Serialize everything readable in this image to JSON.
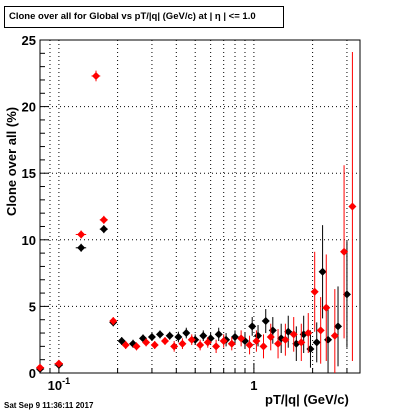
{
  "chart_data": {
    "type": "scatter",
    "title": "Clone   over all for Global vs pT/|q| (GeV/c) at |   η | <= 1.0",
    "xlabel": "pT/|q| (GeV/c)",
    "ylabel": "Clone  over all (%)",
    "xscale": "log",
    "xlim": [
      0.08,
      3.5
    ],
    "ylim": [
      0,
      25
    ],
    "yticks": [
      0,
      5,
      10,
      15,
      20,
      25
    ],
    "xticks_labeled": [
      {
        "value": 0.1,
        "label": "10",
        "exp": "-1"
      },
      {
        "value": 1,
        "label": "1",
        "exp": ""
      }
    ],
    "grid": true,
    "legend": "none",
    "colors": {
      "series_black": "#000000",
      "series_red": "#ff0000"
    },
    "series": [
      {
        "color": "#000000",
        "points": [
          {
            "x": 0.08,
            "y": 0.3,
            "ex": 0.004,
            "ey": 0.2
          },
          {
            "x": 0.1,
            "y": 0.6,
            "ex": 0.005,
            "ey": 0.2
          },
          {
            "x": 0.13,
            "y": 9.4,
            "ex": 0.008,
            "ey": 0.3
          },
          {
            "x": 0.17,
            "y": 10.8,
            "ex": 0.008,
            "ey": 0.3
          },
          {
            "x": 0.19,
            "y": 3.8,
            "ex": 0.006,
            "ey": 0.3
          },
          {
            "x": 0.21,
            "y": 2.4,
            "ex": 0.006,
            "ey": 0.3
          },
          {
            "x": 0.24,
            "y": 2.2,
            "ex": 0.006,
            "ey": 0.3
          },
          {
            "x": 0.27,
            "y": 2.6,
            "ex": 0.006,
            "ey": 0.3
          },
          {
            "x": 0.3,
            "y": 2.7,
            "ex": 0.006,
            "ey": 0.3
          },
          {
            "x": 0.33,
            "y": 2.9,
            "ex": 0.006,
            "ey": 0.3
          },
          {
            "x": 0.37,
            "y": 2.8,
            "ex": 0.006,
            "ey": 0.3
          },
          {
            "x": 0.41,
            "y": 2.7,
            "ex": 0.006,
            "ey": 0.4
          },
          {
            "x": 0.45,
            "y": 3.0,
            "ex": 0.006,
            "ey": 0.4
          },
          {
            "x": 0.5,
            "y": 2.5,
            "ex": 0.006,
            "ey": 0.4
          },
          {
            "x": 0.55,
            "y": 2.8,
            "ex": 0.006,
            "ey": 0.4
          },
          {
            "x": 0.6,
            "y": 2.6,
            "ex": 0.006,
            "ey": 0.4
          },
          {
            "x": 0.66,
            "y": 2.9,
            "ex": 0.006,
            "ey": 0.5
          },
          {
            "x": 0.72,
            "y": 2.5,
            "ex": 0.006,
            "ey": 0.5
          },
          {
            "x": 0.8,
            "y": 2.7,
            "ex": 0.006,
            "ey": 0.5
          },
          {
            "x": 0.9,
            "y": 2.4,
            "ex": 0.006,
            "ey": 0.6
          },
          {
            "x": 0.98,
            "y": 3.5,
            "ex": 0.006,
            "ey": 0.7
          },
          {
            "x": 1.05,
            "y": 2.8,
            "ex": 0.006,
            "ey": 0.8
          },
          {
            "x": 1.15,
            "y": 3.9,
            "ex": 0.006,
            "ey": 0.9
          },
          {
            "x": 1.25,
            "y": 3.2,
            "ex": 0.006,
            "ey": 1.0
          },
          {
            "x": 1.38,
            "y": 2.6,
            "ex": 0.006,
            "ey": 1.1
          },
          {
            "x": 1.5,
            "y": 3.1,
            "ex": 0.006,
            "ey": 1.2
          },
          {
            "x": 1.65,
            "y": 2.2,
            "ex": 0.006,
            "ey": 1.3
          },
          {
            "x": 1.8,
            "y": 2.9,
            "ex": 0.006,
            "ey": 1.4
          },
          {
            "x": 1.95,
            "y": 1.8,
            "ex": 0.006,
            "ey": 1.4
          },
          {
            "x": 2.1,
            "y": 2.3,
            "ex": 0.006,
            "ey": 1.5
          },
          {
            "x": 2.25,
            "y": 7.6,
            "ex": 0.006,
            "ey": 3.5
          },
          {
            "x": 2.4,
            "y": 2.5,
            "ex": 0.006,
            "ey": 2.5
          },
          {
            "x": 2.7,
            "y": 3.5,
            "ex": 0.006,
            "ey": 3.0
          },
          {
            "x": 3.0,
            "y": 5.9,
            "ex": 0.006,
            "ey": 4.0
          }
        ]
      },
      {
        "color": "#ff0000",
        "points": [
          {
            "x": 0.08,
            "y": 0.4,
            "ex": 0.004,
            "ey": 0.2
          },
          {
            "x": 0.1,
            "y": 0.7,
            "ex": 0.005,
            "ey": 0.2
          },
          {
            "x": 0.13,
            "y": 10.4,
            "ex": 0.008,
            "ey": 0.3
          },
          {
            "x": 0.155,
            "y": 22.3,
            "ex": 0.008,
            "ey": 0.4
          },
          {
            "x": 0.17,
            "y": 11.5,
            "ex": 0.008,
            "ey": 0.3
          },
          {
            "x": 0.19,
            "y": 3.9,
            "ex": 0.006,
            "ey": 0.3
          },
          {
            "x": 0.22,
            "y": 2.1,
            "ex": 0.006,
            "ey": 0.3
          },
          {
            "x": 0.25,
            "y": 2.0,
            "ex": 0.006,
            "ey": 0.3
          },
          {
            "x": 0.28,
            "y": 2.3,
            "ex": 0.006,
            "ey": 0.3
          },
          {
            "x": 0.31,
            "y": 2.1,
            "ex": 0.006,
            "ey": 0.3
          },
          {
            "x": 0.35,
            "y": 2.4,
            "ex": 0.006,
            "ey": 0.3
          },
          {
            "x": 0.39,
            "y": 2.0,
            "ex": 0.006,
            "ey": 0.4
          },
          {
            "x": 0.43,
            "y": 2.2,
            "ex": 0.006,
            "ey": 0.4
          },
          {
            "x": 0.48,
            "y": 2.5,
            "ex": 0.006,
            "ey": 0.4
          },
          {
            "x": 0.53,
            "y": 2.1,
            "ex": 0.006,
            "ey": 0.4
          },
          {
            "x": 0.58,
            "y": 2.3,
            "ex": 0.006,
            "ey": 0.4
          },
          {
            "x": 0.64,
            "y": 2.0,
            "ex": 0.006,
            "ey": 0.5
          },
          {
            "x": 0.7,
            "y": 2.4,
            "ex": 0.006,
            "ey": 0.5
          },
          {
            "x": 0.77,
            "y": 2.2,
            "ex": 0.006,
            "ey": 0.5
          },
          {
            "x": 0.86,
            "y": 2.6,
            "ex": 0.006,
            "ey": 0.6
          },
          {
            "x": 0.95,
            "y": 2.1,
            "ex": 0.006,
            "ey": 0.7
          },
          {
            "x": 1.03,
            "y": 2.4,
            "ex": 0.006,
            "ey": 0.8
          },
          {
            "x": 1.12,
            "y": 2.0,
            "ex": 0.006,
            "ey": 0.9
          },
          {
            "x": 1.22,
            "y": 2.7,
            "ex": 0.006,
            "ey": 1.0
          },
          {
            "x": 1.33,
            "y": 2.2,
            "ex": 0.006,
            "ey": 1.1
          },
          {
            "x": 1.45,
            "y": 2.5,
            "ex": 0.006,
            "ey": 1.2
          },
          {
            "x": 1.6,
            "y": 2.9,
            "ex": 0.006,
            "ey": 1.3
          },
          {
            "x": 1.75,
            "y": 2.3,
            "ex": 0.006,
            "ey": 1.4
          },
          {
            "x": 1.9,
            "y": 3.0,
            "ex": 0.006,
            "ey": 1.5
          },
          {
            "x": 2.05,
            "y": 6.1,
            "ex": 0.006,
            "ey": 3.0
          },
          {
            "x": 2.2,
            "y": 3.2,
            "ex": 0.006,
            "ey": 2.5
          },
          {
            "x": 2.35,
            "y": 4.9,
            "ex": 0.006,
            "ey": 4.0
          },
          {
            "x": 2.6,
            "y": 2.8,
            "ex": 0.006,
            "ey": 3.5
          },
          {
            "x": 2.9,
            "y": 9.1,
            "ex": 0.006,
            "ey": 6.5
          },
          {
            "x": 3.2,
            "y": 12.5,
            "ex": 0.006,
            "ey": 11.6
          }
        ]
      }
    ]
  },
  "timestamp": "Sat Sep  9 11:36:11 2017"
}
